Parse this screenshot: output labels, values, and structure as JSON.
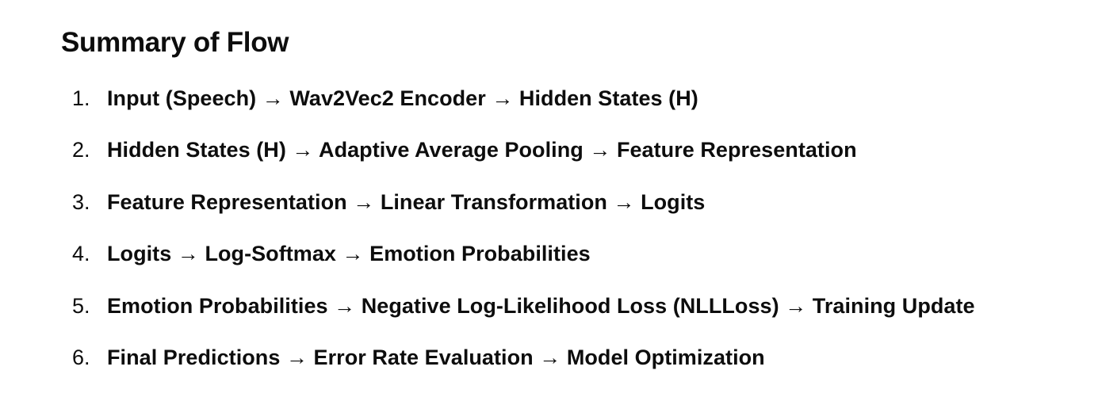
{
  "document": {
    "heading": "Summary of Flow",
    "steps": [
      {
        "number": "1.",
        "text": "Input (Speech) → Wav2Vec2 Encoder → Hidden States (H)"
      },
      {
        "number": "2.",
        "text": "Hidden States (H) → Adaptive Average Pooling → Feature Representation"
      },
      {
        "number": "3.",
        "text": "Feature Representation → Linear Transformation → Logits"
      },
      {
        "number": "4.",
        "text": "Logits → Log-Softmax → Emotion Probabilities"
      },
      {
        "number": "5.",
        "text": "Emotion Probabilities → Negative Log-Likelihood Loss (NLLLoss) → Training Update"
      },
      {
        "number": "6.",
        "text": "Final Predictions → Error Rate Evaluation → Model Optimization"
      }
    ]
  }
}
